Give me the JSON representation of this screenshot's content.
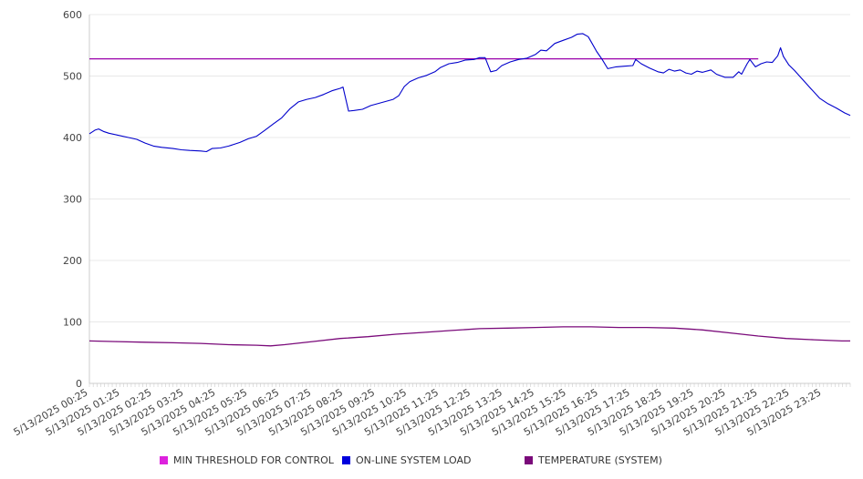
{
  "chart_data": {
    "type": "line",
    "title": "",
    "xlabel": "",
    "ylabel": "",
    "ylim": [
      0,
      600
    ],
    "yticks": [
      0,
      100,
      200,
      300,
      400,
      500,
      600
    ],
    "grid": true,
    "legend_position": "bottom",
    "categories": [
      "5/13/2025 00:25",
      "5/13/2025 01:25",
      "5/13/2025 02:25",
      "5/13/2025 03:25",
      "5/13/2025 04:25",
      "5/13/2025 05:25",
      "5/13/2025 06:25",
      "5/13/2025 07:25",
      "5/13/2025 08:25",
      "5/13/2025 09:25",
      "5/13/2025 10:25",
      "5/13/2025 11:25",
      "5/13/2025 12:25",
      "5/13/2025 13:25",
      "5/13/2025 14:25",
      "5/13/2025 15:25",
      "5/13/2025 16:25",
      "5/13/2025 17:25",
      "5/13/2025 18:25",
      "5/13/2025 19:25",
      "5/13/2025 20:25",
      "5/13/2025 21:25",
      "5/13/2025 22:25",
      "5/13/2025 23:25"
    ],
    "x_hours": [
      0,
      24
    ],
    "series": [
      {
        "name": "MIN THRESHOLD FOR CONTROL",
        "color": "#cc22cc",
        "line_color": "#9900aa",
        "points": [
          [
            0,
            528
          ],
          [
            24,
            528
          ]
        ]
      },
      {
        "name": "ON-LINE SYSTEM LOAD",
        "color": "#0000dd",
        "line_color": "#0000cc",
        "points": [
          [
            0.0,
            406
          ],
          [
            0.2,
            412
          ],
          [
            0.33,
            414
          ],
          [
            0.5,
            410
          ],
          [
            0.7,
            407
          ],
          [
            1.0,
            404
          ],
          [
            1.4,
            400
          ],
          [
            1.7,
            397
          ],
          [
            2.0,
            391
          ],
          [
            2.3,
            386
          ],
          [
            2.6,
            384
          ],
          [
            3.0,
            382
          ],
          [
            3.3,
            380
          ],
          [
            3.6,
            379
          ],
          [
            4.0,
            378
          ],
          [
            4.2,
            377
          ],
          [
            4.4,
            382
          ],
          [
            4.7,
            383
          ],
          [
            5.0,
            386
          ],
          [
            5.4,
            392
          ],
          [
            5.7,
            398
          ],
          [
            6.0,
            402
          ],
          [
            6.3,
            412
          ],
          [
            6.6,
            422
          ],
          [
            6.9,
            432
          ],
          [
            7.2,
            447
          ],
          [
            7.5,
            458
          ],
          [
            7.8,
            462
          ],
          [
            8.1,
            465
          ],
          [
            8.4,
            470
          ],
          [
            8.7,
            476
          ],
          [
            9.0,
            480
          ],
          [
            9.1,
            482
          ],
          [
            9.3,
            443
          ],
          [
            9.5,
            444
          ],
          [
            9.8,
            446
          ],
          [
            10.1,
            452
          ],
          [
            10.5,
            457
          ],
          [
            10.9,
            462
          ],
          [
            11.1,
            468
          ],
          [
            11.3,
            483
          ],
          [
            11.5,
            491
          ],
          [
            11.8,
            497
          ],
          [
            12.1,
            501
          ],
          [
            12.4,
            507
          ],
          [
            12.6,
            514
          ],
          [
            12.9,
            520
          ],
          [
            13.2,
            522
          ],
          [
            13.5,
            526
          ],
          [
            13.8,
            527
          ],
          [
            14.0,
            530
          ],
          [
            14.2,
            530
          ],
          [
            14.4,
            507
          ],
          [
            14.6,
            509
          ],
          [
            14.8,
            517
          ],
          [
            15.1,
            523
          ],
          [
            15.4,
            527
          ],
          [
            15.7,
            529
          ],
          [
            16.0,
            535
          ],
          [
            16.2,
            542
          ],
          [
            16.4,
            541
          ],
          [
            16.7,
            553
          ],
          [
            17.0,
            558
          ],
          [
            17.3,
            563
          ],
          [
            17.5,
            568
          ],
          [
            17.7,
            569
          ],
          [
            17.9,
            564
          ],
          [
            18.0,
            556
          ],
          [
            18.2,
            540
          ],
          [
            18.4,
            527
          ],
          [
            18.6,
            512
          ],
          [
            18.9,
            515
          ],
          [
            19.2,
            516
          ],
          [
            19.5,
            517
          ],
          [
            19.6,
            527
          ],
          [
            19.8,
            520
          ],
          [
            20.1,
            513
          ],
          [
            20.4,
            507
          ],
          [
            20.6,
            505
          ],
          [
            20.8,
            511
          ],
          [
            21.0,
            508
          ],
          [
            21.2,
            510
          ],
          [
            21.4,
            505
          ],
          [
            21.6,
            503
          ],
          [
            21.8,
            508
          ],
          [
            22.0,
            506
          ],
          [
            22.3,
            510
          ],
          [
            22.5,
            503
          ],
          [
            22.8,
            498
          ],
          [
            23.1,
            498
          ],
          [
            23.3,
            507
          ],
          [
            23.4,
            503
          ],
          [
            23.6,
            520
          ],
          [
            23.7,
            527
          ],
          [
            23.9,
            515
          ],
          [
            24.1,
            520
          ],
          [
            24.3,
            523
          ],
          [
            24.5,
            522
          ],
          [
            24.7,
            533
          ],
          [
            24.8,
            546
          ],
          [
            24.9,
            532
          ],
          [
            25.1,
            518
          ],
          [
            25.3,
            509
          ],
          [
            25.6,
            494
          ],
          [
            25.9,
            479
          ],
          [
            26.2,
            464
          ],
          [
            26.5,
            455
          ],
          [
            26.8,
            448
          ],
          [
            27.1,
            440
          ],
          [
            27.3,
            436
          ]
        ]
      },
      {
        "name": "TEMPERATURE (SYSTEM)",
        "color": "#7a0a7a",
        "line_color": "#7a0a7a",
        "points": [
          [
            0.0,
            69
          ],
          [
            1.0,
            68
          ],
          [
            2.0,
            67
          ],
          [
            3.0,
            66
          ],
          [
            4.0,
            65
          ],
          [
            5.0,
            63
          ],
          [
            6.0,
            62
          ],
          [
            6.5,
            61
          ],
          [
            7.0,
            63
          ],
          [
            8.0,
            68
          ],
          [
            9.0,
            73
          ],
          [
            10.0,
            76
          ],
          [
            11.0,
            80
          ],
          [
            12.0,
            83
          ],
          [
            13.0,
            86
          ],
          [
            14.0,
            89
          ],
          [
            15.0,
            90
          ],
          [
            16.0,
            91
          ],
          [
            17.0,
            92
          ],
          [
            18.0,
            92
          ],
          [
            19.0,
            91
          ],
          [
            20.0,
            91
          ],
          [
            21.0,
            90
          ],
          [
            22.0,
            87
          ],
          [
            23.0,
            82
          ],
          [
            24.0,
            77
          ],
          [
            25.0,
            73
          ],
          [
            26.0,
            71
          ],
          [
            27.0,
            69
          ],
          [
            27.3,
            69
          ]
        ]
      }
    ]
  }
}
